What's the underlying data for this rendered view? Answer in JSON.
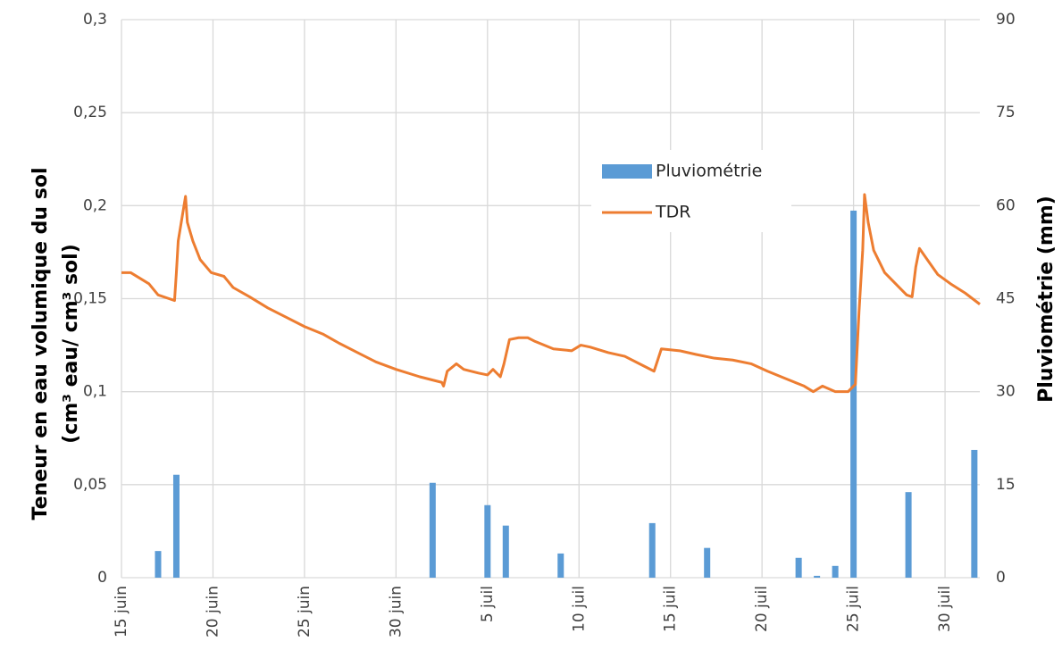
{
  "chart_data": {
    "type": "combo",
    "ylabel": [
      "Teneur en eau volumique du sol",
      "(cm³  eau/ cm³ sol)"
    ],
    "y2label": "Pluviométrie (mm)",
    "xlim": [
      0,
      46.9
    ],
    "xticks": [
      {
        "value": 0,
        "label": "15 juin"
      },
      {
        "value": 5,
        "label": "20 juin"
      },
      {
        "value": 10,
        "label": "25 juin"
      },
      {
        "value": 15,
        "label": "30 juin"
      },
      {
        "value": 20,
        "label": "5 juil"
      },
      {
        "value": 25,
        "label": "10 juil"
      },
      {
        "value": 30,
        "label": "15 juil"
      },
      {
        "value": 35,
        "label": "20 juil"
      },
      {
        "value": 40,
        "label": "25 juil"
      },
      {
        "value": 45,
        "label": "30 juil"
      }
    ],
    "ylim": [
      0,
      0.3
    ],
    "yticks": [
      0,
      {
        "value": 0.05,
        "label": "0,05"
      },
      {
        "value": 0.1,
        "label": "0,1"
      },
      {
        "value": 0.15,
        "label": "0,15"
      },
      {
        "value": 0.2,
        "label": "0,2"
      },
      {
        "value": 0.25,
        "label": "0,25"
      },
      {
        "value": 0.3,
        "label": "0,3"
      }
    ],
    "y2lim": [
      0,
      90
    ],
    "y2ticks": [
      0,
      15,
      30,
      45,
      60,
      75,
      90
    ],
    "grid": true,
    "series": [
      {
        "name": "Pluviométrie",
        "type": "bar",
        "axis": "y2",
        "color": "#5b9bd5",
        "x": [
          2,
          3,
          17,
          20,
          21,
          24,
          29,
          32,
          37,
          38,
          39,
          40,
          43,
          46.6
        ],
        "values": [
          4.3,
          16.6,
          15.3,
          11.7,
          8.4,
          3.9,
          8.8,
          4.8,
          3.2,
          0.3,
          1.9,
          59.2,
          13.8,
          20.6
        ]
      },
      {
        "name": "TDR",
        "type": "line",
        "color": "#ed7d31",
        "x": [
          0,
          0.5,
          1,
          1.5,
          2,
          2.6,
          2.9,
          3.0,
          3.1,
          3.3,
          3.5,
          3.6,
          3.9,
          4.3,
          4.9,
          5.6,
          6.1,
          7.0,
          8.0,
          9.0,
          10.0,
          11.0,
          11.9,
          12.9,
          13.9,
          15.0,
          16.3,
          17.5,
          17.6,
          17.8,
          18.3,
          18.7,
          19.5,
          20.0,
          20.3,
          20.7,
          20.9,
          21.2,
          21.7,
          22.2,
          22.6,
          23.6,
          24.6,
          25.1,
          25.6,
          26.6,
          27.5,
          28.5,
          29.1,
          29.5,
          30.5,
          31.4,
          32.4,
          33.4,
          34.4,
          35.3,
          36.3,
          37.3,
          37.8,
          38.3,
          39.0,
          39.7,
          40.1,
          40.3,
          40.5,
          40.6,
          40.8,
          41.1,
          41.7,
          42.4,
          42.9,
          43.2,
          43.4,
          43.6,
          44.1,
          44.6,
          45.3,
          46.1,
          46.9
        ],
        "values": [
          0.164,
          0.164,
          0.161,
          0.158,
          0.152,
          0.15,
          0.149,
          0.164,
          0.181,
          0.193,
          0.205,
          0.191,
          0.181,
          0.171,
          0.164,
          0.162,
          0.156,
          0.151,
          0.145,
          0.14,
          0.135,
          0.131,
          0.126,
          0.121,
          0.116,
          0.112,
          0.108,
          0.105,
          0.103,
          0.111,
          0.115,
          0.112,
          0.11,
          0.109,
          0.112,
          0.108,
          0.115,
          0.128,
          0.129,
          0.129,
          0.127,
          0.123,
          0.122,
          0.125,
          0.124,
          0.121,
          0.119,
          0.114,
          0.111,
          0.123,
          0.122,
          0.12,
          0.118,
          0.117,
          0.115,
          0.111,
          0.107,
          0.103,
          0.1,
          0.103,
          0.1,
          0.1,
          0.104,
          0.143,
          0.176,
          0.206,
          0.191,
          0.176,
          0.164,
          0.157,
          0.152,
          0.151,
          0.167,
          0.177,
          0.17,
          0.163,
          0.158,
          0.153,
          0.147
        ]
      }
    ]
  }
}
